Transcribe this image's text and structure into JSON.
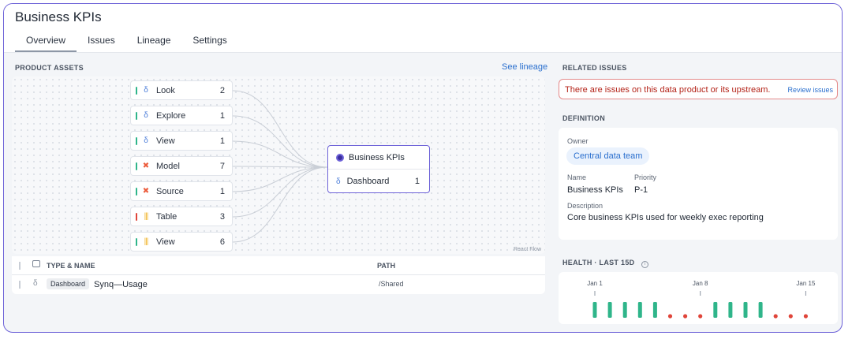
{
  "page": {
    "title": "Business KPIs"
  },
  "tabs": [
    {
      "label": "Overview"
    },
    {
      "label": "Issues"
    },
    {
      "label": "Lineage"
    },
    {
      "label": "Settings"
    }
  ],
  "product_assets": {
    "label": "PRODUCT ASSETS",
    "see_lineage": "See lineage",
    "nodes": [
      {
        "label": "Look",
        "count": "2",
        "bar_color": "#2fb58a",
        "icon": "looker-icon"
      },
      {
        "label": "Explore",
        "count": "1",
        "bar_color": "#2fb58a",
        "icon": "looker-icon"
      },
      {
        "label": "View",
        "count": "1",
        "bar_color": "#2fb58a",
        "icon": "looker-icon"
      },
      {
        "label": "Model",
        "count": "7",
        "bar_color": "#2fb58a",
        "icon": "dbt-icon"
      },
      {
        "label": "Source",
        "count": "1",
        "bar_color": "#2fb58a",
        "icon": "dbt-icon"
      },
      {
        "label": "Table",
        "count": "3",
        "bar_color": "#e0453a",
        "icon": "warehouse-icon"
      },
      {
        "label": "View",
        "count": "6",
        "bar_color": "#2fb58a",
        "icon": "warehouse-icon"
      }
    ],
    "target": {
      "title": "Business KPIs",
      "child_label": "Dashboard",
      "child_count": "1"
    },
    "react_flow": "React Flow"
  },
  "table": {
    "headers": {
      "type_name": "TYPE & NAME",
      "path": "PATH"
    },
    "rows": [
      {
        "type": "Dashboard",
        "name": "Synq—Usage",
        "path": "/Shared"
      }
    ]
  },
  "related_issues": {
    "label": "RELATED ISSUES",
    "message": "There are issues on this data product or its upstream.",
    "action": "Review issues"
  },
  "definition": {
    "label": "DEFINITION",
    "owner_label": "Owner",
    "owner": "Central data team",
    "name_label": "Name",
    "name": "Business KPIs",
    "priority_label": "Priority",
    "priority": "P-1",
    "description_label": "Description",
    "description": "Core business KPIs used for weekly exec reporting"
  },
  "health": {
    "label": "HEALTH · LAST 15D",
    "ticks": [
      "Jan 1",
      "Jan 8",
      "Jan 15"
    ],
    "days": [
      "ok",
      "ok",
      "ok",
      "ok",
      "ok",
      "fail",
      "fail",
      "fail",
      "ok",
      "ok",
      "ok",
      "ok",
      "fail",
      "fail",
      "fail"
    ],
    "colors": {
      "ok": "#2fb58a",
      "fail": "#e0453a"
    }
  }
}
